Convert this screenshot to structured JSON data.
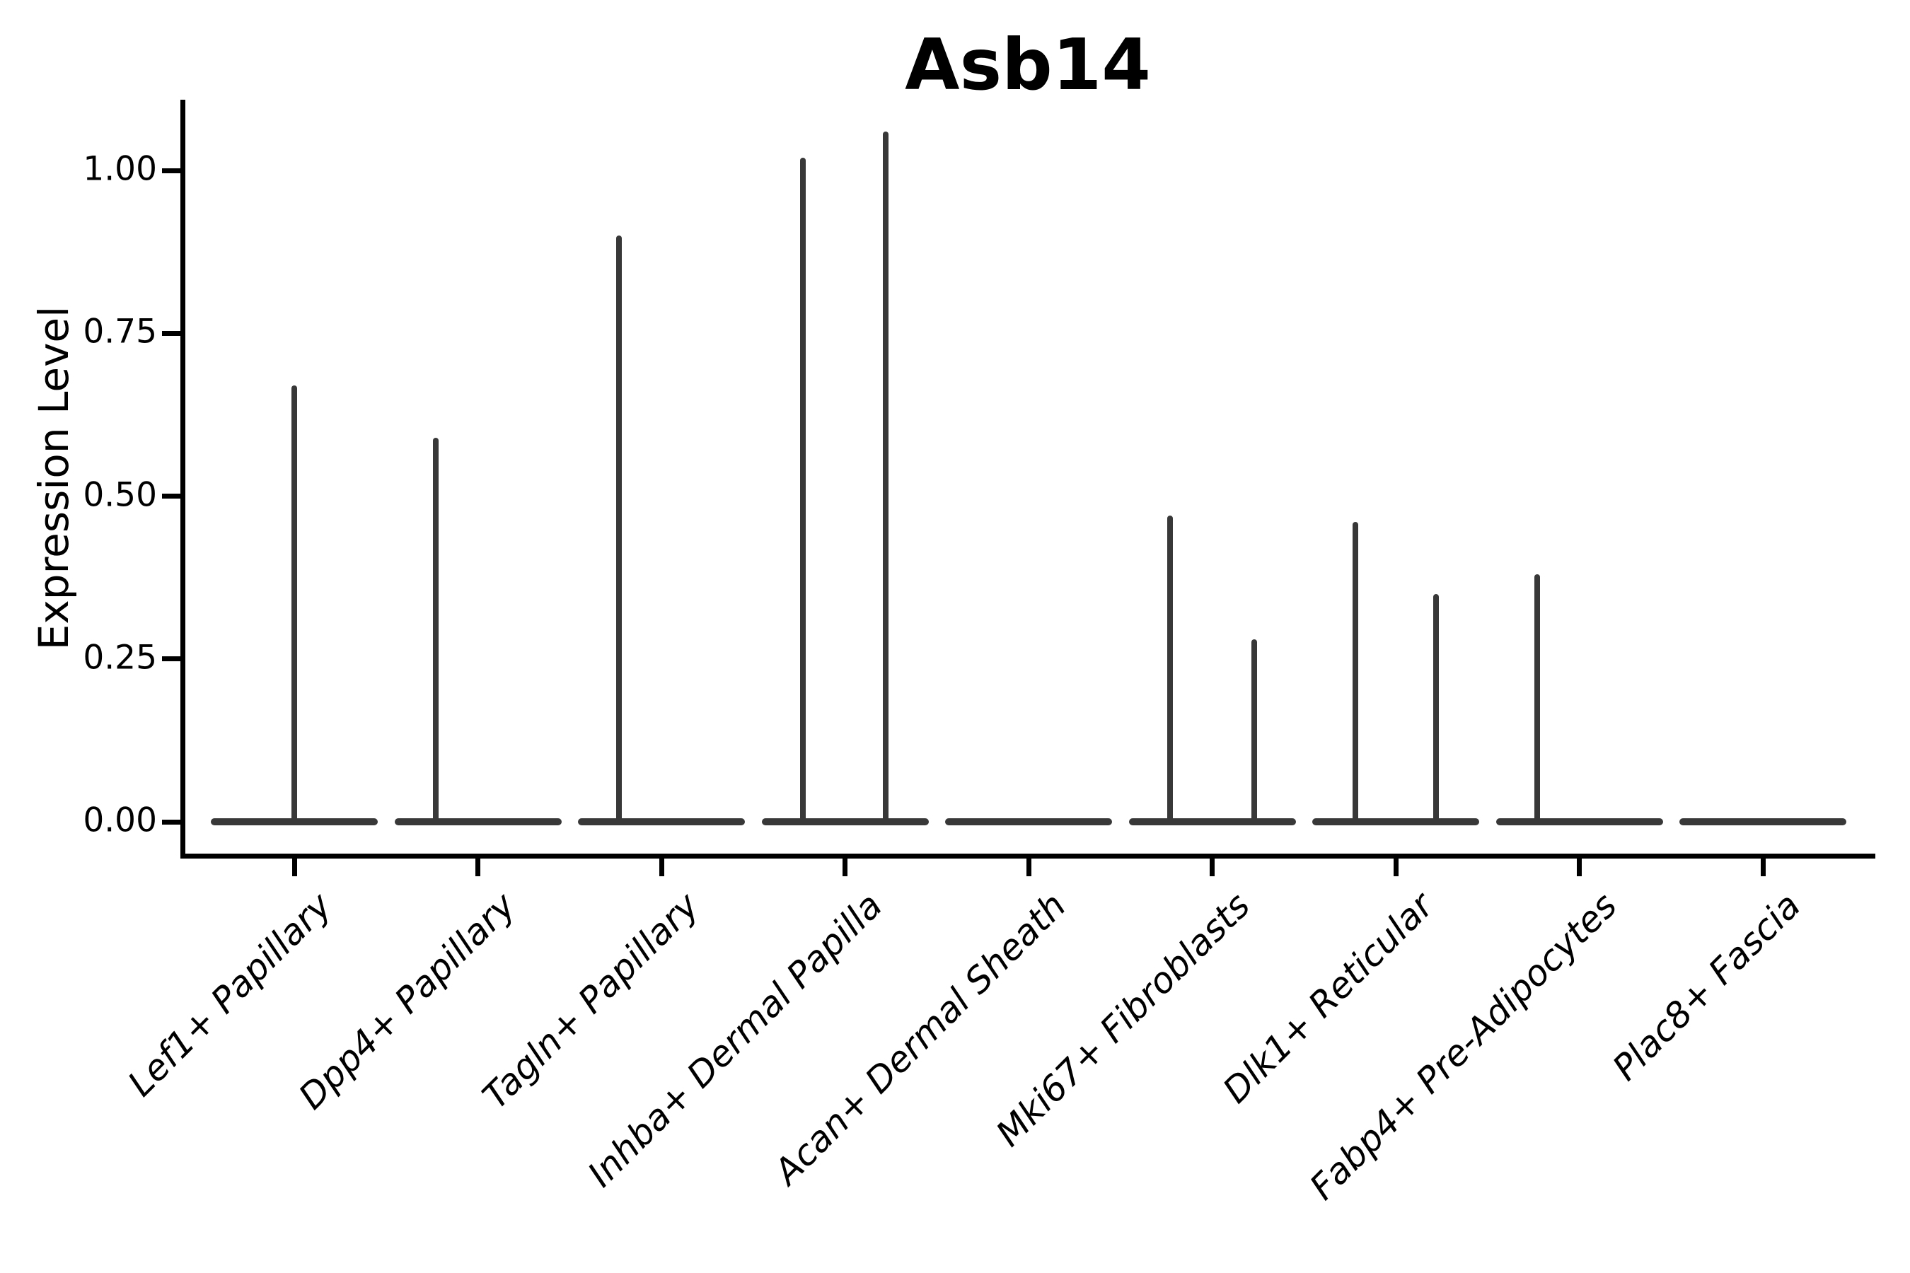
{
  "chart_data": {
    "type": "violin",
    "title": "Asb14",
    "ylabel": "Expression Level",
    "xlabel": "",
    "ytick_labels": [
      "0.00",
      "0.25",
      "0.50",
      "0.75",
      "1.00"
    ],
    "ytick_values": [
      0.0,
      0.25,
      0.5,
      0.75,
      1.0
    ],
    "ylim": [
      -0.05,
      1.11
    ],
    "legend": "none",
    "grid": false,
    "baseline_value": 0.0,
    "categories": [
      "Lef1+ Papillary",
      "Dpp4+ Papillary",
      "Tagln+ Papillary",
      "Inhba+ Dermal Papilla",
      "Acan+ Dermal Sheath",
      "Mki67+ Fibroblasts",
      "Dlk1+ Reticular",
      "Fabp4+ Pre-Adipocytes",
      "Plac8+ Fascia"
    ],
    "violins": [
      {
        "category": "Lef1+ Papillary",
        "max_spikes": [
          {
            "x_offset_frac": 0.0,
            "value": 0.67
          }
        ]
      },
      {
        "category": "Dpp4+ Papillary",
        "max_spikes": [
          {
            "x_offset_frac": -0.23,
            "value": 0.59
          }
        ]
      },
      {
        "category": "Tagln+ Papillary",
        "max_spikes": [
          {
            "x_offset_frac": -0.23,
            "value": 0.9
          }
        ]
      },
      {
        "category": "Inhba+ Dermal Papilla",
        "max_spikes": [
          {
            "x_offset_frac": -0.23,
            "value": 1.02
          },
          {
            "x_offset_frac": 0.22,
            "value": 1.06
          }
        ]
      },
      {
        "category": "Acan+ Dermal Sheath",
        "max_spikes": []
      },
      {
        "category": "Mki67+ Fibroblasts",
        "max_spikes": [
          {
            "x_offset_frac": -0.23,
            "value": 0.47
          },
          {
            "x_offset_frac": 0.23,
            "value": 0.28
          }
        ]
      },
      {
        "category": "Dlk1+ Reticular",
        "max_spikes": [
          {
            "x_offset_frac": -0.22,
            "value": 0.46
          },
          {
            "x_offset_frac": 0.22,
            "value": 0.35
          }
        ]
      },
      {
        "category": "Fabp4+ Pre-Adipocytes",
        "max_spikes": [
          {
            "x_offset_frac": -0.23,
            "value": 0.38
          }
        ]
      },
      {
        "category": "Plac8+ Fascia",
        "max_spikes": []
      }
    ],
    "colors": {
      "violin": "#383838",
      "axis": "#000000",
      "text": "#000000",
      "background": "#ffffff"
    }
  }
}
